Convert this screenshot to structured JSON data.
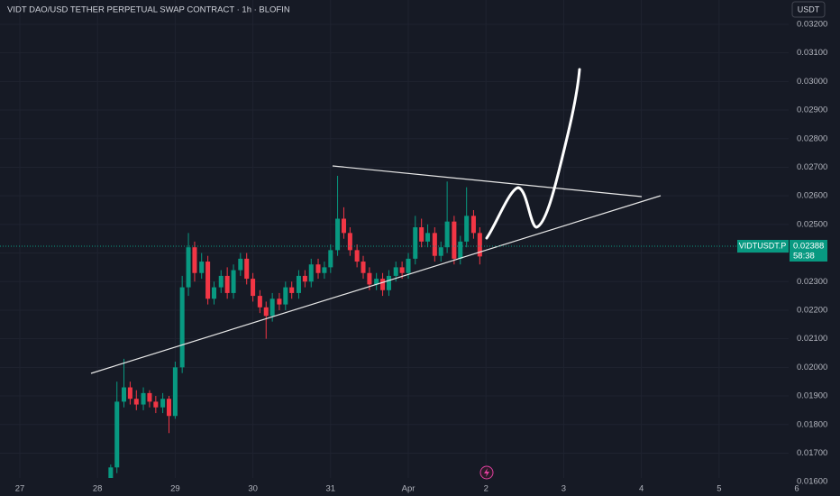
{
  "chart_data": {
    "type": "candlestick",
    "title": "VIDT DAO/USD TETHER PERPETUAL SWAP CONTRACT · 1h · BLOFIN",
    "currency": "USDT",
    "symbol": "VIDTUSDT.P",
    "last_price": {
      "value": 0.02388,
      "label": "0.02388"
    },
    "countdown": "58:38",
    "up_color": "#089981",
    "down_color": "#f23645",
    "xlim": [
      -0.255,
      9.895
    ],
    "ylim": [
      0.0155,
      0.03285
    ],
    "xticks": [
      {
        "value": 0,
        "label": "27"
      },
      {
        "value": 1,
        "label": "28"
      },
      {
        "value": 2,
        "label": "29"
      },
      {
        "value": 3,
        "label": "30"
      },
      {
        "value": 4,
        "label": "31"
      },
      {
        "value": 5,
        "label": "Apr"
      },
      {
        "value": 6,
        "label": "2"
      },
      {
        "value": 7,
        "label": "3"
      },
      {
        "value": 8,
        "label": "4"
      },
      {
        "value": 9,
        "label": "5"
      },
      {
        "value": 10,
        "label": "6"
      }
    ],
    "yticks": [
      {
        "value": 0.016,
        "label": "0.01600"
      },
      {
        "value": 0.017,
        "label": "0.01700"
      },
      {
        "value": 0.018,
        "label": "0.01800"
      },
      {
        "value": 0.019,
        "label": "0.01900"
      },
      {
        "value": 0.02,
        "label": "0.02000"
      },
      {
        "value": 0.021,
        "label": "0.02100"
      },
      {
        "value": 0.022,
        "label": "0.02200"
      },
      {
        "value": 0.023,
        "label": "0.02300"
      },
      {
        "value": 0.024,
        "label": "0.02400"
      },
      {
        "value": 0.025,
        "label": "0.02500"
      },
      {
        "value": 0.026,
        "label": "0.02600"
      },
      {
        "value": 0.027,
        "label": "0.02700"
      },
      {
        "value": 0.028,
        "label": "0.02800"
      },
      {
        "value": 0.029,
        "label": "0.02900"
      },
      {
        "value": 0.03,
        "label": "0.03000"
      },
      {
        "value": 0.031,
        "label": "0.03100"
      },
      {
        "value": 0.032,
        "label": "0.03200"
      }
    ],
    "grid": true,
    "x": [
      1.17,
      1.25,
      1.34,
      1.42,
      1.5,
      1.59,
      1.67,
      1.75,
      1.84,
      1.92,
      2.0,
      2.09,
      2.17,
      2.25,
      2.34,
      2.42,
      2.5,
      2.59,
      2.67,
      2.75,
      2.84,
      2.92,
      3.0,
      3.09,
      3.17,
      3.25,
      3.34,
      3.42,
      3.5,
      3.59,
      3.67,
      3.75,
      3.84,
      3.92,
      4.0,
      4.09,
      4.17,
      4.25,
      4.34,
      4.42,
      4.5,
      4.59,
      4.67,
      4.75,
      4.84,
      4.92,
      5.0,
      5.09,
      5.17,
      5.25,
      5.34,
      5.42,
      5.5,
      5.59,
      5.67,
      5.75,
      5.84,
      5.92
    ],
    "open": [
      0.0158,
      0.0165,
      0.0188,
      0.0193,
      0.0189,
      0.0187,
      0.0191,
      0.0188,
      0.0186,
      0.0189,
      0.0183,
      0.02,
      0.0228,
      0.0242,
      0.0233,
      0.0237,
      0.0224,
      0.0228,
      0.0232,
      0.0226,
      0.0234,
      0.0238,
      0.0231,
      0.0225,
      0.0221,
      0.0218,
      0.0224,
      0.0222,
      0.0228,
      0.0226,
      0.0232,
      0.023,
      0.0236,
      0.0233,
      0.0235,
      0.0241,
      0.0252,
      0.0247,
      0.0241,
      0.0237,
      0.0233,
      0.0229,
      0.0231,
      0.0227,
      0.0232,
      0.0235,
      0.0233,
      0.0238,
      0.0249,
      0.0244,
      0.0247,
      0.0239,
      0.0242,
      0.0251,
      0.0238,
      0.0244,
      0.0253,
      0.0247
    ],
    "high": [
      0.0166,
      0.0195,
      0.0203,
      0.0195,
      0.0192,
      0.0193,
      0.0192,
      0.019,
      0.0191,
      0.019,
      0.0202,
      0.0232,
      0.0247,
      0.0244,
      0.024,
      0.0239,
      0.023,
      0.0234,
      0.0235,
      0.0236,
      0.024,
      0.024,
      0.0233,
      0.0227,
      0.0223,
      0.0226,
      0.0226,
      0.023,
      0.023,
      0.0234,
      0.0234,
      0.0238,
      0.0238,
      0.0237,
      0.0243,
      0.0267,
      0.0256,
      0.0249,
      0.0243,
      0.0239,
      0.0235,
      0.0233,
      0.0233,
      0.0234,
      0.0237,
      0.0237,
      0.024,
      0.0253,
      0.0252,
      0.025,
      0.0249,
      0.0244,
      0.0265,
      0.0253,
      0.0246,
      0.0263,
      0.0255,
      0.0249
    ],
    "low": [
      0.0155,
      0.0163,
      0.0186,
      0.0187,
      0.0185,
      0.0185,
      0.0186,
      0.0184,
      0.0184,
      0.0177,
      0.0182,
      0.0198,
      0.0225,
      0.023,
      0.0231,
      0.0222,
      0.0222,
      0.0226,
      0.0224,
      0.0224,
      0.0232,
      0.0229,
      0.0223,
      0.0219,
      0.021,
      0.0216,
      0.022,
      0.022,
      0.0224,
      0.0224,
      0.0228,
      0.0228,
      0.0231,
      0.0231,
      0.0233,
      0.0239,
      0.0245,
      0.0239,
      0.0235,
      0.0231,
      0.0227,
      0.0227,
      0.0225,
      0.0225,
      0.023,
      0.0231,
      0.0231,
      0.0236,
      0.0242,
      0.0242,
      0.0237,
      0.0237,
      0.024,
      0.0236,
      0.0236,
      0.0242,
      0.0245,
      0.0236
    ],
    "close": [
      0.0165,
      0.0188,
      0.0193,
      0.0189,
      0.0187,
      0.0191,
      0.0188,
      0.0186,
      0.0189,
      0.0183,
      0.02,
      0.0228,
      0.0242,
      0.0233,
      0.0237,
      0.0224,
      0.0228,
      0.0232,
      0.0226,
      0.0234,
      0.0238,
      0.0231,
      0.0225,
      0.0221,
      0.0218,
      0.0224,
      0.0222,
      0.0228,
      0.0226,
      0.0232,
      0.023,
      0.0236,
      0.0233,
      0.0235,
      0.0241,
      0.0252,
      0.0247,
      0.0241,
      0.0237,
      0.0233,
      0.0229,
      0.0231,
      0.0227,
      0.0232,
      0.0235,
      0.0233,
      0.0238,
      0.0249,
      0.0244,
      0.0247,
      0.0239,
      0.0242,
      0.0251,
      0.0238,
      0.0244,
      0.0253,
      0.0247,
      0.02388
    ]
  }
}
